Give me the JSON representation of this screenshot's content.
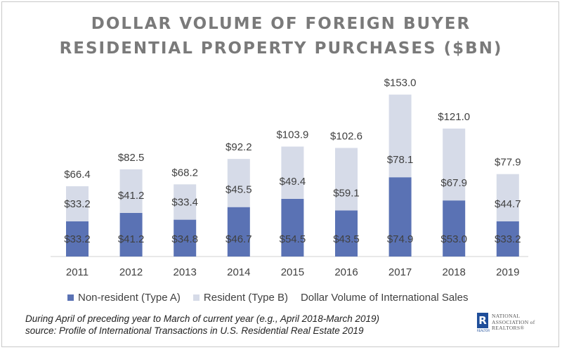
{
  "header": {
    "title_line1": "DOLLAR VOLUME OF FOREIGN BUYER",
    "title_line2": "RESIDENTIAL PROPERTY PURCHASES ($BN)"
  },
  "chart_data": {
    "type": "bar",
    "stacked": true,
    "title": "DOLLAR VOLUME OF FOREIGN BUYER RESIDENTIAL PROPERTY PURCHASES ($BN)",
    "categories": [
      "2011",
      "2012",
      "2013",
      "2014",
      "2015",
      "2016",
      "2017",
      "2018",
      "2019"
    ],
    "series": [
      {
        "name": "Non-resident (Type A)",
        "color": "#5a72b4",
        "values": [
          33.2,
          41.2,
          34.8,
          46.7,
          54.5,
          43.5,
          74.9,
          53.0,
          33.2
        ],
        "labels": [
          "$33.2",
          "$41.2",
          "$34.8",
          "$46.7",
          "$54.5",
          "$43.5",
          "$74.9",
          "$53.0",
          "$33.2"
        ]
      },
      {
        "name": "Resident (Type B)",
        "color": "#d6dbe8",
        "values": [
          33.2,
          41.2,
          33.4,
          45.5,
          49.4,
          59.1,
          78.1,
          67.9,
          44.7
        ],
        "labels": [
          "$33.2",
          "$41.2",
          "$33.4",
          "$45.5",
          "$49.4",
          "$59.1",
          "$78.1",
          "$67.9",
          "$44.7"
        ]
      }
    ],
    "totals": {
      "name": "Dollar Volume of International Sales",
      "values": [
        66.4,
        82.5,
        68.2,
        92.2,
        103.9,
        102.6,
        153.0,
        121.0,
        77.9
      ],
      "labels": [
        "$66.4",
        "$82.5",
        "$68.2",
        "$92.2",
        "$103.9",
        "$102.6",
        "$153.0",
        "$121.0",
        "$77.9"
      ]
    },
    "ylim": [
      0,
      160
    ],
    "grid": false,
    "legend_position": "bottom"
  },
  "legend": {
    "items": [
      {
        "label": "Non-resident (Type A)",
        "color": "#5a72b4"
      },
      {
        "label": "Resident (Type B)",
        "color": "#d6dbe8"
      },
      {
        "label": "Dollar Volume of International Sales",
        "color": ""
      }
    ]
  },
  "footnote": {
    "line1": "During April of preceding year to March of current year (e.g., April 2018-March 2019)",
    "line2": "source: Profile of International Transactions in U.S. Residential Real Estate 2019"
  },
  "logo": {
    "mark": "R",
    "sub": "REALTOR",
    "org_line1": "NATIONAL",
    "org_line2": "ASSOCIATION of",
    "org_line3": "REALTORS®"
  }
}
